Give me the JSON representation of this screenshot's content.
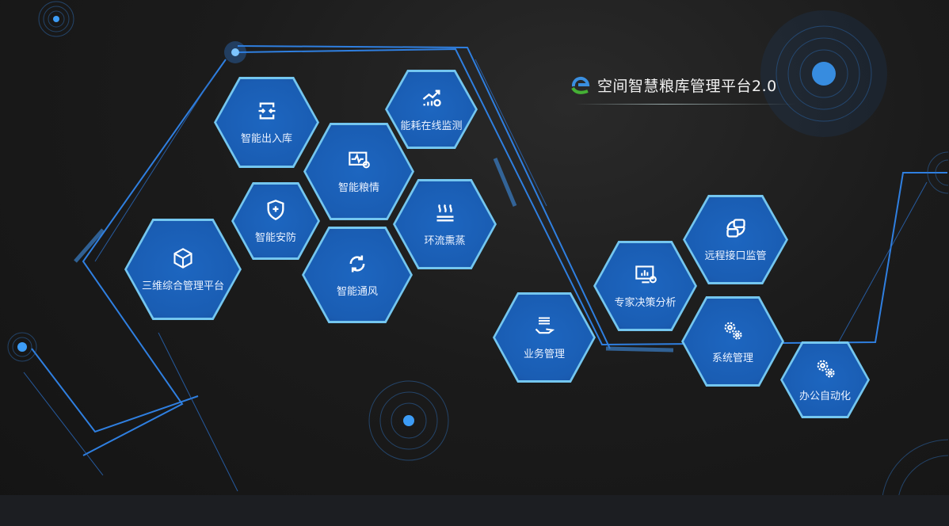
{
  "header": {
    "title": "空间智慧粮库管理平台2.0",
    "logo": "grain-platform-logo"
  },
  "modules": [
    {
      "label": "智能出入库",
      "icon": "transfer-arrows-icon"
    },
    {
      "label": "能耗在线监测",
      "icon": "energy-chart-icon"
    },
    {
      "label": "智能粮情",
      "icon": "monitor-pulse-icon"
    },
    {
      "label": "智能安防",
      "icon": "shield-plus-icon"
    },
    {
      "label": "环流熏蒸",
      "icon": "heat-waves-icon"
    },
    {
      "label": "三维综合管理平台",
      "icon": "cube-icon"
    },
    {
      "label": "智能通风",
      "icon": "refresh-icon"
    },
    {
      "label": "业务管理",
      "icon": "hand-list-icon"
    },
    {
      "label": "专家决策分析",
      "icon": "analytics-screen-icon"
    },
    {
      "label": "远程接口监管",
      "icon": "interface-blocks-icon"
    },
    {
      "label": "系统管理",
      "icon": "gears-icon"
    },
    {
      "label": "办公自动化",
      "icon": "gears-icon"
    }
  ],
  "colors": {
    "accent": "#2f8cf0",
    "hex_fill": "#1a5fb4",
    "hex_border": "#74c6ef",
    "background": "#1b1b1b"
  }
}
